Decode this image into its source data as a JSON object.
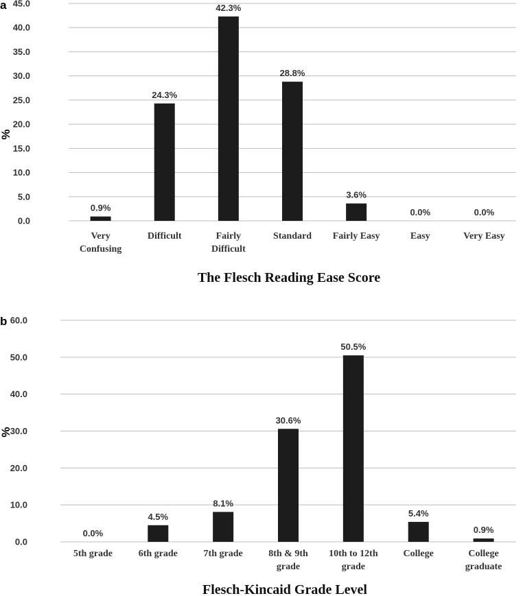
{
  "chart_data": [
    {
      "panel": "a",
      "type": "bar",
      "title": "The Flesch Reading Ease Score",
      "xlabel": "The Flesch Reading Ease Score",
      "ylabel": "%",
      "ylim": [
        0,
        45
      ],
      "yticks": [
        "0.0",
        "5.0",
        "10.0",
        "15.0",
        "20.0",
        "25.0",
        "30.0",
        "35.0",
        "40.0",
        "45.0"
      ],
      "grid": true,
      "categories": [
        [
          "Very",
          "Confusing"
        ],
        [
          "Difficult"
        ],
        [
          "Fairly",
          "Difficult"
        ],
        [
          "Standard"
        ],
        [
          "Fairly Easy"
        ],
        [
          "Easy"
        ],
        [
          "Very Easy"
        ]
      ],
      "values": [
        0.9,
        24.3,
        42.3,
        28.8,
        3.6,
        0.0,
        0.0
      ],
      "data_labels": [
        "0.9%",
        "24.3%",
        "42.3%",
        "28.8%",
        "3.6%",
        "0.0%",
        "0.0%"
      ]
    },
    {
      "panel": "b",
      "type": "bar",
      "title": "Flesch-Kincaid Grade Level",
      "xlabel": "Flesch-Kincaid Grade Level",
      "ylabel": "%",
      "ylim": [
        0,
        60
      ],
      "yticks": [
        "0.0",
        "10.0",
        "20.0",
        "30.0",
        "40.0",
        "50.0",
        "60.0"
      ],
      "grid": true,
      "categories": [
        [
          "5th grade"
        ],
        [
          "6th grade"
        ],
        [
          "7th grade"
        ],
        [
          "8th & 9th",
          "grade"
        ],
        [
          "10th to 12th",
          "grade"
        ],
        [
          "College"
        ],
        [
          "College",
          "graduate"
        ]
      ],
      "values": [
        0.0,
        4.5,
        8.1,
        30.6,
        50.5,
        5.4,
        0.9
      ],
      "data_labels": [
        "0.0%",
        "4.5%",
        "8.1%",
        "30.6%",
        "50.5%",
        "5.4%",
        "0.9%"
      ]
    }
  ]
}
